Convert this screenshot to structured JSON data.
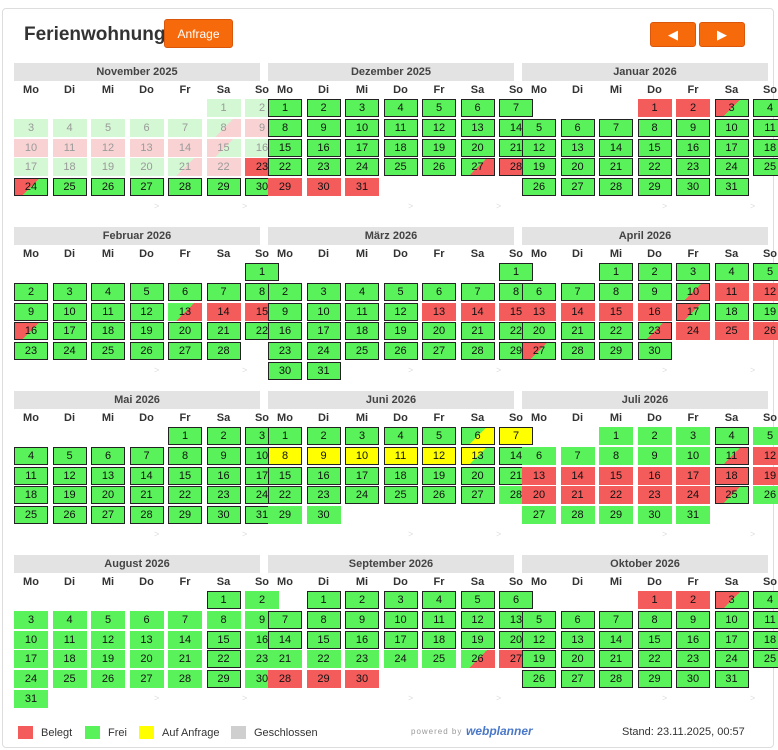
{
  "header": {
    "title": "Ferienwohnung",
    "request_button": "Anfrage",
    "prev_icon": "◀",
    "next_icon": "▶"
  },
  "weekdays": [
    "Mo",
    "Di",
    "Mi",
    "Do",
    "Fr",
    "Sa",
    "So"
  ],
  "nav_marker": ">",
  "status_codes": {
    "f": "Frei",
    "b": "Belegt",
    "q": "Auf Anfrage",
    "c": "Geschlossen",
    "tfb": "Frei → Belegt",
    "tbf": "Belegt → Frei",
    "tqf": "Auf Anfrage → Frei",
    "tfq": "Frei → Auf Anfrage",
    "p-prefix": "vergangener Tag"
  },
  "months": [
    {
      "title": "November 2025",
      "start": 5,
      "days": 30,
      "status": [
        "pf",
        "pf",
        "pf",
        "pf",
        "pf",
        "pf",
        "pf",
        "ptfb",
        "pb",
        "pb",
        "pb",
        "pb",
        "pb",
        "pb",
        "ptbf",
        "pf",
        "pf",
        "pf",
        "pf",
        "pf",
        "ptfb",
        "pb",
        "b",
        "tbf",
        "f",
        "f",
        "f",
        "f",
        "f",
        "f"
      ],
      "outlined": [
        24,
        25,
        26,
        27,
        28,
        29,
        30
      ]
    },
    {
      "title": "Dezember 2025",
      "start": 0,
      "days": 31,
      "status": [
        "f",
        "f",
        "f",
        "f",
        "f",
        "f",
        "f",
        "f",
        "f",
        "f",
        "f",
        "f",
        "f",
        "f",
        "f",
        "f",
        "f",
        "f",
        "f",
        "f",
        "f",
        "f",
        "f",
        "f",
        "f",
        "f",
        "tfb",
        "b",
        "b",
        "b",
        "b"
      ],
      "outlined": [
        1,
        2,
        3,
        4,
        5,
        6,
        7,
        8,
        9,
        10,
        11,
        12,
        13,
        14,
        15,
        16,
        17,
        18,
        19,
        20,
        21,
        22,
        23,
        24,
        25,
        26,
        27,
        28
      ]
    },
    {
      "title": "Januar 2026",
      "start": 3,
      "days": 31,
      "status": [
        "b",
        "b",
        "tbf",
        "f",
        "f",
        "f",
        "f",
        "f",
        "f",
        "f",
        "f",
        "f",
        "f",
        "f",
        "f",
        "f",
        "f",
        "f",
        "f",
        "f",
        "f",
        "f",
        "f",
        "f",
        "f",
        "f",
        "f",
        "f",
        "f",
        "f",
        "f"
      ],
      "outlined": [
        3,
        4,
        5,
        6,
        7,
        8,
        9,
        10,
        11,
        12,
        13,
        14,
        15,
        16,
        17,
        18,
        19,
        20,
        21,
        22,
        23,
        24,
        25,
        26,
        27,
        28,
        29,
        30,
        31
      ]
    },
    {
      "title": "Februar 2026",
      "start": 6,
      "days": 28,
      "status": [
        "f",
        "f",
        "f",
        "f",
        "f",
        "f",
        "f",
        "f",
        "f",
        "f",
        "f",
        "f",
        "tfb",
        "b",
        "b",
        "tbf",
        "f",
        "f",
        "f",
        "f",
        "f",
        "f",
        "f",
        "f",
        "f",
        "f",
        "f",
        "f"
      ],
      "outlined": [
        1,
        2,
        3,
        4,
        5,
        6,
        7,
        8,
        9,
        10,
        11,
        12,
        16,
        17,
        18,
        19,
        20,
        21,
        22,
        23,
        24,
        25,
        26,
        27,
        28
      ]
    },
    {
      "title": "März 2026",
      "start": 6,
      "days": 31,
      "status": [
        "f",
        "f",
        "f",
        "f",
        "f",
        "f",
        "f",
        "f",
        "f",
        "f",
        "f",
        "f",
        "b",
        "b",
        "b",
        "f",
        "f",
        "f",
        "f",
        "f",
        "f",
        "f",
        "f",
        "f",
        "f",
        "f",
        "f",
        "f",
        "f",
        "f",
        "f"
      ],
      "outlined": [
        1,
        2,
        3,
        4,
        5,
        6,
        7,
        8,
        9,
        10,
        11,
        12,
        16,
        17,
        18,
        19,
        20,
        21,
        22,
        23,
        24,
        25,
        26,
        27,
        28,
        29,
        30,
        31
      ]
    },
    {
      "title": "April 2026",
      "start": 2,
      "days": 30,
      "status": [
        "f",
        "f",
        "f",
        "f",
        "f",
        "f",
        "f",
        "f",
        "f",
        "tfb",
        "b",
        "b",
        "b",
        "b",
        "b",
        "b",
        "tbf",
        "f",
        "f",
        "f",
        "f",
        "f",
        "tfb",
        "b",
        "b",
        "b",
        "tbf",
        "f",
        "f",
        "f"
      ],
      "outlined": [
        1,
        2,
        3,
        4,
        5,
        6,
        7,
        8,
        9,
        10,
        17,
        18,
        19,
        20,
        21,
        22,
        23,
        27,
        28,
        29,
        30
      ]
    },
    {
      "title": "Mai 2026",
      "start": 4,
      "days": 31,
      "status": [
        "f",
        "f",
        "f",
        "f",
        "f",
        "f",
        "f",
        "f",
        "f",
        "f",
        "f",
        "f",
        "f",
        "f",
        "f",
        "f",
        "f",
        "f",
        "f",
        "f",
        "f",
        "f",
        "f",
        "f",
        "f",
        "f",
        "f",
        "f",
        "f",
        "f",
        "f"
      ],
      "outlined": [
        1,
        2,
        3,
        4,
        5,
        6,
        7,
        8,
        9,
        10,
        11,
        12,
        13,
        14,
        15,
        16,
        17,
        18,
        19,
        20,
        21,
        22,
        23,
        24,
        25,
        26,
        27,
        28,
        29,
        30,
        31
      ]
    },
    {
      "title": "Juni 2026",
      "start": 0,
      "days": 30,
      "status": [
        "f",
        "f",
        "f",
        "f",
        "f",
        "tfq",
        "q",
        "q",
        "q",
        "q",
        "q",
        "q",
        "tqf",
        "f",
        "f",
        "f",
        "f",
        "f",
        "f",
        "f",
        "f",
        "f",
        "f",
        "f",
        "f",
        "f",
        "f",
        "f",
        "f",
        "f"
      ],
      "outlined": [
        1,
        2,
        3,
        4,
        5,
        6,
        7,
        8,
        9,
        10,
        11,
        12,
        13,
        14,
        15,
        16,
        17,
        18,
        19,
        20,
        21,
        22,
        23,
        24,
        25,
        26,
        27
      ]
    },
    {
      "title": "Juli 2026",
      "start": 2,
      "days": 31,
      "status": [
        "f",
        "f",
        "f",
        "f",
        "f",
        "f",
        "f",
        "f",
        "f",
        "f",
        "tfb",
        "b",
        "b",
        "b",
        "b",
        "b",
        "b",
        "b",
        "b",
        "b",
        "b",
        "b",
        "b",
        "b",
        "tbf",
        "f",
        "f",
        "f",
        "f",
        "f",
        "f"
      ],
      "outlined": [
        4,
        11,
        18,
        25
      ]
    },
    {
      "title": "August 2026",
      "start": 5,
      "days": 31,
      "status": [
        "f",
        "f",
        "f",
        "f",
        "f",
        "f",
        "f",
        "f",
        "f",
        "f",
        "f",
        "f",
        "f",
        "f",
        "f",
        "f",
        "f",
        "f",
        "f",
        "f",
        "f",
        "f",
        "f",
        "f",
        "f",
        "f",
        "f",
        "f",
        "f",
        "f",
        "f"
      ],
      "outlined": [
        1,
        15,
        22,
        29
      ]
    },
    {
      "title": "September 2026",
      "start": 1,
      "days": 30,
      "status": [
        "f",
        "f",
        "f",
        "f",
        "f",
        "f",
        "f",
        "f",
        "f",
        "f",
        "f",
        "f",
        "f",
        "f",
        "f",
        "f",
        "f",
        "f",
        "f",
        "f",
        "f",
        "f",
        "f",
        "f",
        "f",
        "tfb",
        "b",
        "b",
        "b",
        "b"
      ],
      "outlined": [
        1,
        2,
        3,
        4,
        5,
        6,
        7,
        8,
        9,
        10,
        11,
        12,
        13,
        14,
        15,
        16,
        17,
        18,
        19,
        20
      ]
    },
    {
      "title": "Oktober 2026",
      "start": 3,
      "days": 31,
      "status": [
        "b",
        "b",
        "tbf",
        "f",
        "f",
        "f",
        "f",
        "f",
        "f",
        "f",
        "f",
        "f",
        "f",
        "f",
        "f",
        "f",
        "f",
        "f",
        "f",
        "f",
        "f",
        "f",
        "f",
        "f",
        "f",
        "f",
        "f",
        "f",
        "f",
        "f",
        "f"
      ],
      "outlined": [
        3,
        4,
        5,
        6,
        7,
        8,
        9,
        10,
        11,
        12,
        13,
        14,
        15,
        16,
        17,
        18,
        19,
        20,
        21,
        22,
        23,
        24,
        25,
        26,
        27,
        28,
        29,
        30,
        31
      ]
    }
  ],
  "legend": [
    {
      "label": "Belegt",
      "color": "#f45c5c"
    },
    {
      "label": "Frei",
      "color": "#5af25a"
    },
    {
      "label": "Auf Anfrage",
      "color": "#ffff00"
    },
    {
      "label": "Geschlossen",
      "color": "#cfcfcf"
    }
  ],
  "footer": {
    "powered_by": "powered by",
    "brand": "webplanner",
    "stand": "Stand: 23.11.2025, 00:57"
  }
}
